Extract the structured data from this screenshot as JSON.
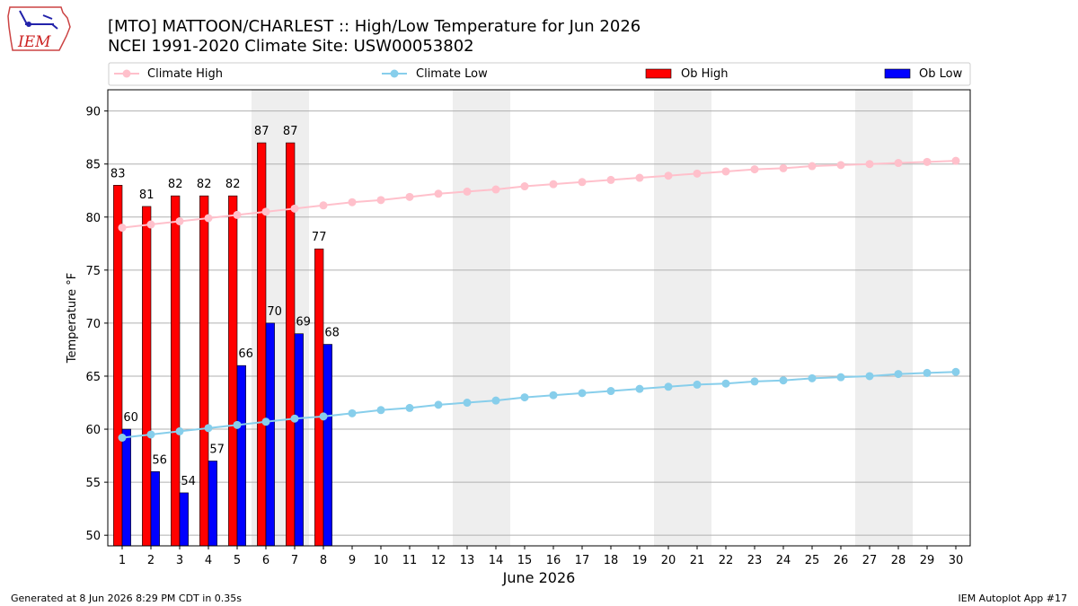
{
  "header": {
    "title_line1": "[MTO] MATTOON/CHARLEST :: High/Low Temperature for Jun 2026",
    "title_line2": "NCEI 1991-2020 Climate Site: USW00053802"
  },
  "logo": {
    "text": "IEM",
    "icon": "iowa-state-outline-icon"
  },
  "footer": {
    "left": "Generated at 8 Jun 2026 8:29 PM CDT in 0.35s",
    "right": "IEM Autoplot App #17"
  },
  "colors": {
    "climate_high": "#ffc0cb",
    "climate_low": "#87ceeb",
    "ob_high": "#ff0000",
    "ob_low": "#0000ff",
    "weekend_shade": "#eeeeee",
    "grid": "#b0b0b0"
  },
  "chart_data": {
    "type": "bar",
    "xlabel": "June 2026",
    "ylabel": "Temperature °F",
    "ylim": [
      49,
      92
    ],
    "yticks": [
      50,
      55,
      60,
      65,
      70,
      75,
      80,
      85,
      90
    ],
    "xticks": [
      "1",
      "2",
      "3",
      "4",
      "5",
      "6",
      "7",
      "8",
      "9",
      "10",
      "11",
      "12",
      "13",
      "14",
      "15",
      "16",
      "17",
      "18",
      "19",
      "20",
      "21",
      "22",
      "23",
      "24",
      "25",
      "26",
      "27",
      "28",
      "29",
      "30"
    ],
    "grid": "y",
    "legend_position": "top",
    "weekend_shaded_days": [
      [
        6,
        7
      ],
      [
        13,
        14
      ],
      [
        20,
        21
      ],
      [
        27,
        28
      ]
    ],
    "days": [
      1,
      2,
      3,
      4,
      5,
      6,
      7,
      8,
      9,
      10,
      11,
      12,
      13,
      14,
      15,
      16,
      17,
      18,
      19,
      20,
      21,
      22,
      23,
      24,
      25,
      26,
      27,
      28,
      29,
      30
    ],
    "series": [
      {
        "name": "Climate High",
        "kind": "line",
        "values": [
          79.0,
          79.3,
          79.6,
          79.9,
          80.2,
          80.5,
          80.8,
          81.1,
          81.4,
          81.6,
          81.9,
          82.2,
          82.4,
          82.6,
          82.9,
          83.1,
          83.3,
          83.5,
          83.7,
          83.9,
          84.1,
          84.3,
          84.5,
          84.6,
          84.8,
          84.9,
          85.0,
          85.1,
          85.2,
          85.3
        ]
      },
      {
        "name": "Climate Low",
        "kind": "line",
        "values": [
          59.2,
          59.5,
          59.8,
          60.1,
          60.4,
          60.7,
          61.0,
          61.2,
          61.5,
          61.8,
          62.0,
          62.3,
          62.5,
          62.7,
          63.0,
          63.2,
          63.4,
          63.6,
          63.8,
          64.0,
          64.2,
          64.3,
          64.5,
          64.6,
          64.8,
          64.9,
          65.0,
          65.2,
          65.3,
          65.4
        ]
      },
      {
        "name": "Ob High",
        "kind": "bar",
        "values": [
          83,
          81,
          82,
          82,
          82,
          87,
          87,
          77
        ]
      },
      {
        "name": "Ob Low",
        "kind": "bar",
        "values": [
          60,
          56,
          54,
          57,
          66,
          70,
          69,
          68
        ]
      }
    ]
  }
}
